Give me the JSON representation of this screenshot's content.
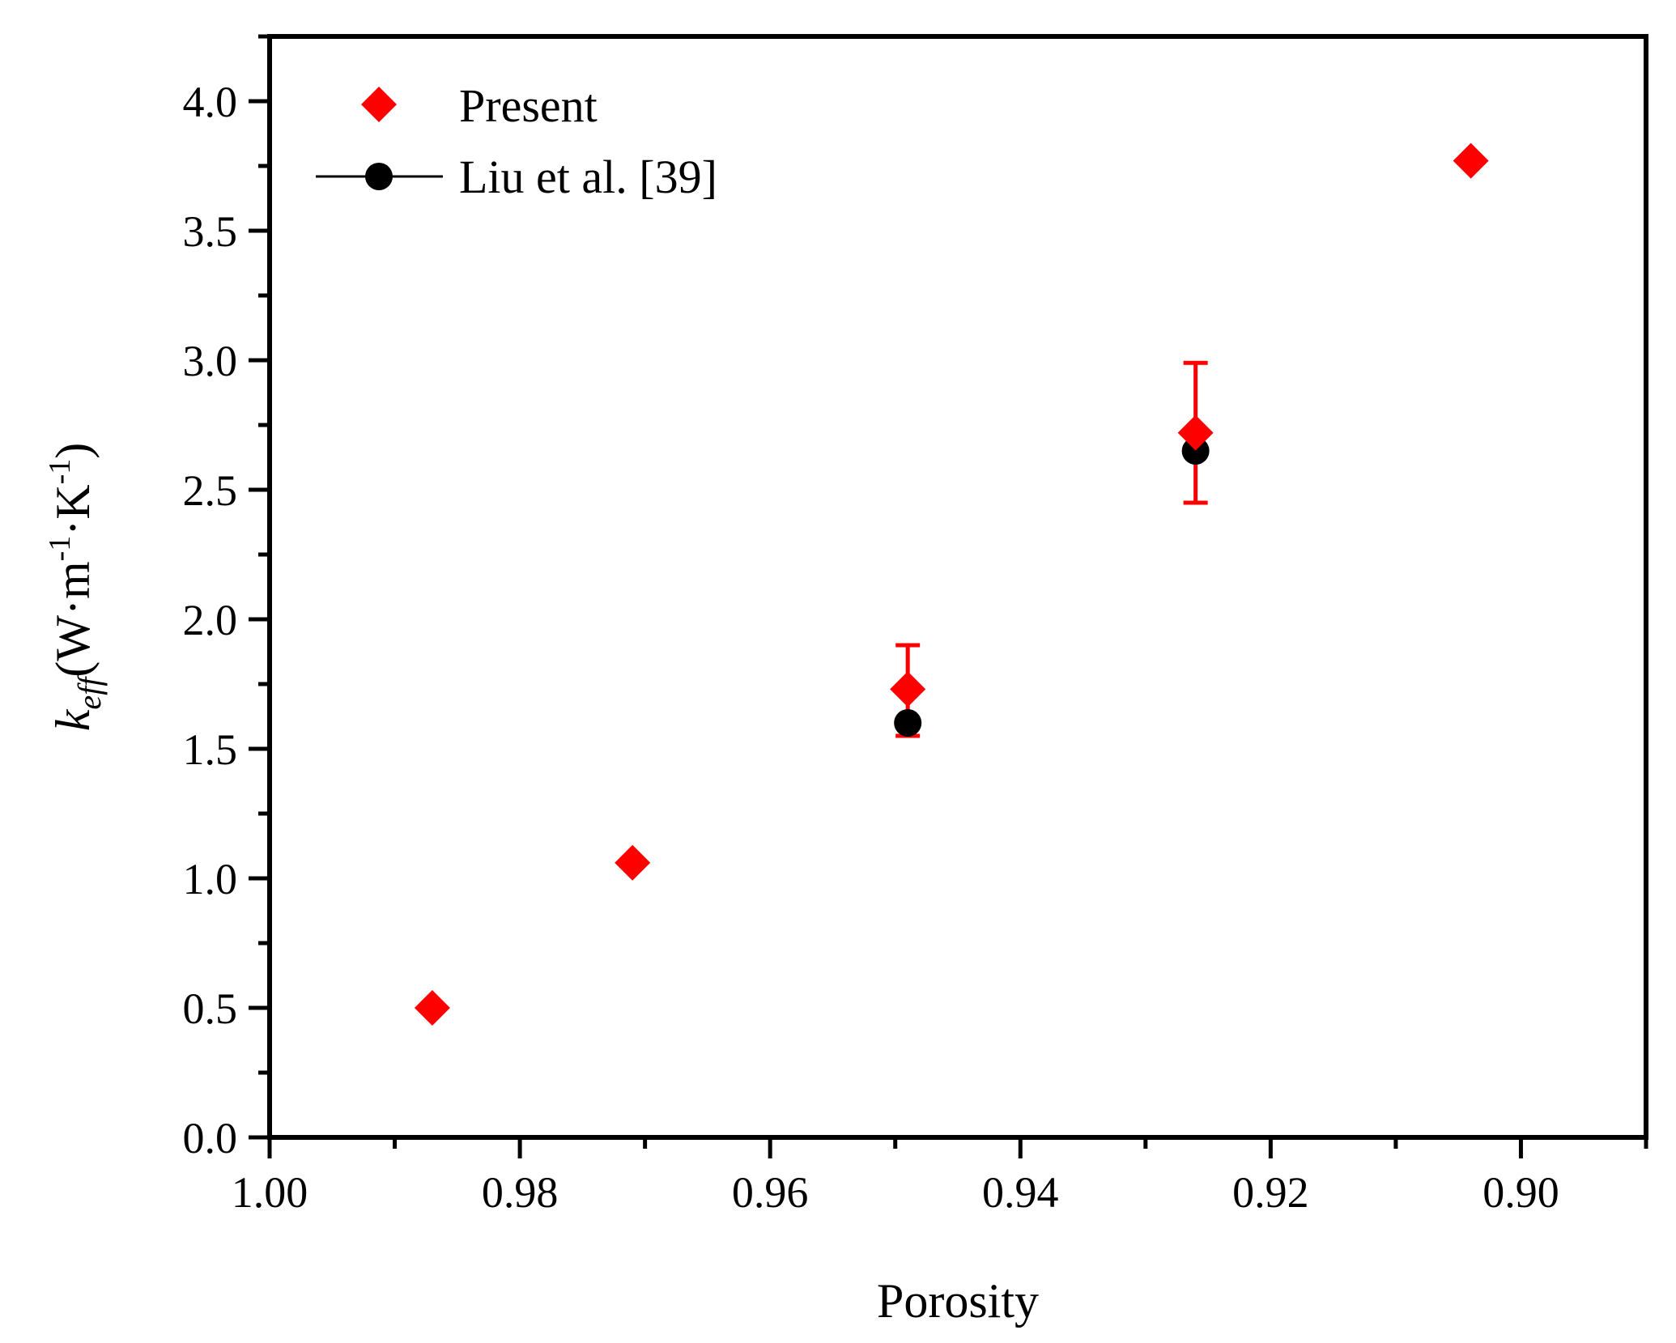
{
  "chart_data": {
    "type": "scatter",
    "xlabel": "Porosity",
    "ylabel": {
      "symbol": "k",
      "subscript": "eff",
      "unit_open": "(W·m",
      "unit_exp1": "-1",
      "unit_mid": "·K",
      "unit_exp2": "-1",
      "unit_close": ")"
    },
    "x_axis": {
      "range": [
        1.0,
        0.89
      ],
      "reversed": true,
      "ticks": [
        1.0,
        0.98,
        0.96,
        0.94,
        0.92,
        0.9
      ],
      "tick_labels": [
        "1.00",
        "0.98",
        "0.96",
        "0.94",
        "0.92",
        "0.90"
      ],
      "minor_step": 0.01
    },
    "y_axis": {
      "range": [
        0,
        4.25
      ],
      "ticks": [
        0,
        0.5,
        1.0,
        1.5,
        2.0,
        2.5,
        3.0,
        3.5,
        4.0
      ],
      "tick_labels": [
        "0.0",
        "0.5",
        "1.0",
        "1.5",
        "2.0",
        "2.5",
        "3.0",
        "3.5",
        "4.0"
      ],
      "minor_step": 0.25
    },
    "grid": false,
    "legend": "top-left",
    "series": [
      {
        "name": "Present",
        "marker": "diamond",
        "color": "#ff0000",
        "points": [
          {
            "x": 0.987,
            "y": 0.5
          },
          {
            "x": 0.971,
            "y": 1.06
          },
          {
            "x": 0.949,
            "y": 1.73
          },
          {
            "x": 0.926,
            "y": 2.72
          },
          {
            "x": 0.904,
            "y": 3.77
          }
        ]
      },
      {
        "name": "Liu et al. [39]",
        "marker": "circle",
        "color": "#000000",
        "line": true,
        "points": [
          {
            "x": 0.949,
            "y": 1.6,
            "err_low": 0.05,
            "err_high": 0.3
          },
          {
            "x": 0.926,
            "y": 2.65,
            "err_low": 0.2,
            "err_high": 0.34
          }
        ],
        "error_bar_color": "#ff0000"
      }
    ]
  }
}
